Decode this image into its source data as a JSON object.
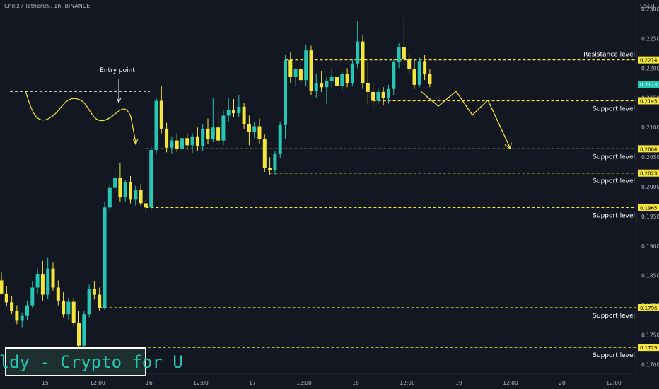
{
  "header": {
    "symbol_line": "Chiliz / TetherUS, 1h, BINANCE",
    "currency": "USDT"
  },
  "watermark": {
    "text": "Solldy - Crypto for U"
  },
  "colors": {
    "background": "#131722",
    "bull": "#26c6b5",
    "bear": "#f5e63b",
    "level_line": "#f5e63b",
    "axis_text": "#b2b5be",
    "price_badge": "#26c6b5"
  },
  "chart_data": {
    "type": "candlestick",
    "symbol": "Chiliz / TetherUS",
    "interval": "1h",
    "exchange": "BINANCE",
    "ylim": [
      0.1685,
      0.2315
    ],
    "y_ticks": [
      "0.2300",
      "0.2250",
      "0.2200",
      "0.2150",
      "0.2100",
      "0.2050",
      "0.2000",
      "0.1950",
      "0.1900",
      "0.1850",
      "0.1800",
      "0.1750",
      "0.1700"
    ],
    "x_ticks": [
      "15",
      "12:00",
      "16",
      "12:00",
      "17",
      "12:00",
      "18",
      "12:00",
      "19",
      "12:00",
      "20",
      "12:00"
    ],
    "current_price": "0.2173",
    "levels": [
      {
        "price": 0.2214,
        "label": "0.2214",
        "name": "Resistance level",
        "x_start_index": 55
      },
      {
        "price": 0.2145,
        "label": "0.2145",
        "name": "Support level",
        "x_start_index": 72
      },
      {
        "price": 0.2064,
        "label": "0.2064",
        "name": "Support level",
        "x_start_index": 28
      },
      {
        "price": 0.2023,
        "label": "0.2023",
        "name": "Support level",
        "x_start_index": 52
      },
      {
        "price": 0.1965,
        "label": "0.1965",
        "name": "Support level",
        "x_start_index": 28
      },
      {
        "price": 0.1796,
        "label": "0.1796",
        "name": "Support level",
        "x_start_index": 19
      },
      {
        "price": 0.1729,
        "label": "0.1729",
        "name": "Support level",
        "x_start_index": 15
      }
    ],
    "annotations": {
      "entry_label": "Entry point",
      "entry_price": 0.2161,
      "projection_prices": [
        0.2161,
        0.2136,
        0.2161,
        0.2121,
        0.2146,
        0.2064
      ]
    },
    "candles": [
      {
        "o": 0.1842,
        "h": 0.1855,
        "l": 0.1818,
        "c": 0.182
      },
      {
        "o": 0.182,
        "h": 0.1832,
        "l": 0.1798,
        "c": 0.1805
      },
      {
        "o": 0.1805,
        "h": 0.1815,
        "l": 0.1785,
        "c": 0.179
      },
      {
        "o": 0.179,
        "h": 0.18,
        "l": 0.1768,
        "c": 0.1774
      },
      {
        "o": 0.1774,
        "h": 0.1788,
        "l": 0.1762,
        "c": 0.1782
      },
      {
        "o": 0.1782,
        "h": 0.1808,
        "l": 0.1775,
        "c": 0.18
      },
      {
        "o": 0.18,
        "h": 0.184,
        "l": 0.1795,
        "c": 0.183
      },
      {
        "o": 0.183,
        "h": 0.1862,
        "l": 0.182,
        "c": 0.1852
      },
      {
        "o": 0.1852,
        "h": 0.1875,
        "l": 0.1808,
        "c": 0.1818
      },
      {
        "o": 0.1818,
        "h": 0.188,
        "l": 0.181,
        "c": 0.1862
      },
      {
        "o": 0.1862,
        "h": 0.1872,
        "l": 0.1825,
        "c": 0.183
      },
      {
        "o": 0.183,
        "h": 0.1842,
        "l": 0.18,
        "c": 0.1808
      },
      {
        "o": 0.1808,
        "h": 0.1822,
        "l": 0.178,
        "c": 0.1785
      },
      {
        "o": 0.1785,
        "h": 0.1812,
        "l": 0.1775,
        "c": 0.1806
      },
      {
        "o": 0.1806,
        "h": 0.1812,
        "l": 0.1765,
        "c": 0.177
      },
      {
        "o": 0.177,
        "h": 0.179,
        "l": 0.1715,
        "c": 0.1732
      },
      {
        "o": 0.1732,
        "h": 0.179,
        "l": 0.1728,
        "c": 0.1785
      },
      {
        "o": 0.1785,
        "h": 0.1835,
        "l": 0.178,
        "c": 0.1828
      },
      {
        "o": 0.1828,
        "h": 0.184,
        "l": 0.181,
        "c": 0.1818
      },
      {
        "o": 0.1818,
        "h": 0.183,
        "l": 0.179,
        "c": 0.1796
      },
      {
        "o": 0.1796,
        "h": 0.1975,
        "l": 0.1792,
        "c": 0.1965
      },
      {
        "o": 0.1965,
        "h": 0.2005,
        "l": 0.1958,
        "c": 0.1998
      },
      {
        "o": 0.1998,
        "h": 0.203,
        "l": 0.1992,
        "c": 0.2015
      },
      {
        "o": 0.2015,
        "h": 0.204,
        "l": 0.1975,
        "c": 0.1982
      },
      {
        "o": 0.1982,
        "h": 0.2012,
        "l": 0.1975,
        "c": 0.2008
      },
      {
        "o": 0.2008,
        "h": 0.2018,
        "l": 0.1972,
        "c": 0.1978
      },
      {
        "o": 0.1978,
        "h": 0.2002,
        "l": 0.1968,
        "c": 0.1995
      },
      {
        "o": 0.1995,
        "h": 0.2005,
        "l": 0.1968,
        "c": 0.1972
      },
      {
        "o": 0.1972,
        "h": 0.198,
        "l": 0.1955,
        "c": 0.1965
      },
      {
        "o": 0.1965,
        "h": 0.207,
        "l": 0.196,
        "c": 0.2062
      },
      {
        "o": 0.2062,
        "h": 0.215,
        "l": 0.2055,
        "c": 0.2145
      },
      {
        "o": 0.2145,
        "h": 0.217,
        "l": 0.209,
        "c": 0.2098
      },
      {
        "o": 0.2098,
        "h": 0.2108,
        "l": 0.2058,
        "c": 0.2066
      },
      {
        "o": 0.2066,
        "h": 0.2085,
        "l": 0.2055,
        "c": 0.2078
      },
      {
        "o": 0.2078,
        "h": 0.209,
        "l": 0.2058,
        "c": 0.2064
      },
      {
        "o": 0.2064,
        "h": 0.2088,
        "l": 0.2055,
        "c": 0.2082
      },
      {
        "o": 0.2082,
        "h": 0.209,
        "l": 0.2062,
        "c": 0.207
      },
      {
        "o": 0.207,
        "h": 0.209,
        "l": 0.2056,
        "c": 0.2085
      },
      {
        "o": 0.2085,
        "h": 0.21,
        "l": 0.206,
        "c": 0.2068
      },
      {
        "o": 0.2068,
        "h": 0.2105,
        "l": 0.206,
        "c": 0.2098
      },
      {
        "o": 0.2098,
        "h": 0.2115,
        "l": 0.2072,
        "c": 0.208
      },
      {
        "o": 0.208,
        "h": 0.215,
        "l": 0.2075,
        "c": 0.21
      },
      {
        "o": 0.21,
        "h": 0.2125,
        "l": 0.2072,
        "c": 0.2078
      },
      {
        "o": 0.2078,
        "h": 0.213,
        "l": 0.207,
        "c": 0.212
      },
      {
        "o": 0.212,
        "h": 0.215,
        "l": 0.211,
        "c": 0.213
      },
      {
        "o": 0.213,
        "h": 0.2148,
        "l": 0.2118,
        "c": 0.2124
      },
      {
        "o": 0.2124,
        "h": 0.2155,
        "l": 0.2118,
        "c": 0.2135
      },
      {
        "o": 0.2135,
        "h": 0.2142,
        "l": 0.2098,
        "c": 0.2105
      },
      {
        "o": 0.2105,
        "h": 0.212,
        "l": 0.207,
        "c": 0.2092
      },
      {
        "o": 0.2092,
        "h": 0.211,
        "l": 0.2082,
        "c": 0.2102
      },
      {
        "o": 0.2102,
        "h": 0.2115,
        "l": 0.2072,
        "c": 0.208
      },
      {
        "o": 0.208,
        "h": 0.2088,
        "l": 0.2025,
        "c": 0.2032
      },
      {
        "o": 0.2032,
        "h": 0.205,
        "l": 0.202,
        "c": 0.2028
      },
      {
        "o": 0.2028,
        "h": 0.206,
        "l": 0.202,
        "c": 0.2055
      },
      {
        "o": 0.2055,
        "h": 0.211,
        "l": 0.2048,
        "c": 0.2104
      },
      {
        "o": 0.2104,
        "h": 0.2222,
        "l": 0.208,
        "c": 0.2214
      },
      {
        "o": 0.2214,
        "h": 0.2228,
        "l": 0.2175,
        "c": 0.2185
      },
      {
        "o": 0.2185,
        "h": 0.22,
        "l": 0.217,
        "c": 0.2198
      },
      {
        "o": 0.2198,
        "h": 0.221,
        "l": 0.2175,
        "c": 0.218
      },
      {
        "o": 0.218,
        "h": 0.224,
        "l": 0.217,
        "c": 0.223
      },
      {
        "o": 0.223,
        "h": 0.2238,
        "l": 0.2155,
        "c": 0.2162
      },
      {
        "o": 0.2162,
        "h": 0.219,
        "l": 0.215,
        "c": 0.2175
      },
      {
        "o": 0.2175,
        "h": 0.2195,
        "l": 0.216,
        "c": 0.2168
      },
      {
        "o": 0.2168,
        "h": 0.2185,
        "l": 0.214,
        "c": 0.2178
      },
      {
        "o": 0.2178,
        "h": 0.22,
        "l": 0.2165,
        "c": 0.2185
      },
      {
        "o": 0.2185,
        "h": 0.219,
        "l": 0.216,
        "c": 0.217
      },
      {
        "o": 0.217,
        "h": 0.2195,
        "l": 0.2162,
        "c": 0.219
      },
      {
        "o": 0.219,
        "h": 0.22,
        "l": 0.2168,
        "c": 0.2175
      },
      {
        "o": 0.2175,
        "h": 0.2215,
        "l": 0.217,
        "c": 0.2208
      },
      {
        "o": 0.2208,
        "h": 0.228,
        "l": 0.22,
        "c": 0.2245
      },
      {
        "o": 0.2245,
        "h": 0.2255,
        "l": 0.2165,
        "c": 0.2175
      },
      {
        "o": 0.2175,
        "h": 0.221,
        "l": 0.214,
        "c": 0.216
      },
      {
        "o": 0.216,
        "h": 0.2175,
        "l": 0.2132,
        "c": 0.2145
      },
      {
        "o": 0.2145,
        "h": 0.2165,
        "l": 0.214,
        "c": 0.216
      },
      {
        "o": 0.216,
        "h": 0.2168,
        "l": 0.2138,
        "c": 0.215
      },
      {
        "o": 0.215,
        "h": 0.2172,
        "l": 0.214,
        "c": 0.2165
      },
      {
        "o": 0.2165,
        "h": 0.2215,
        "l": 0.2155,
        "c": 0.221
      },
      {
        "o": 0.221,
        "h": 0.2242,
        "l": 0.22,
        "c": 0.2235
      },
      {
        "o": 0.2235,
        "h": 0.2285,
        "l": 0.2205,
        "c": 0.2215
      },
      {
        "o": 0.2215,
        "h": 0.2225,
        "l": 0.219,
        "c": 0.2198
      },
      {
        "o": 0.2198,
        "h": 0.2215,
        "l": 0.2165,
        "c": 0.2172
      },
      {
        "o": 0.2172,
        "h": 0.2218,
        "l": 0.2168,
        "c": 0.2212
      },
      {
        "o": 0.2212,
        "h": 0.2222,
        "l": 0.218,
        "c": 0.219
      },
      {
        "o": 0.219,
        "h": 0.2198,
        "l": 0.2168,
        "c": 0.2173
      }
    ]
  }
}
